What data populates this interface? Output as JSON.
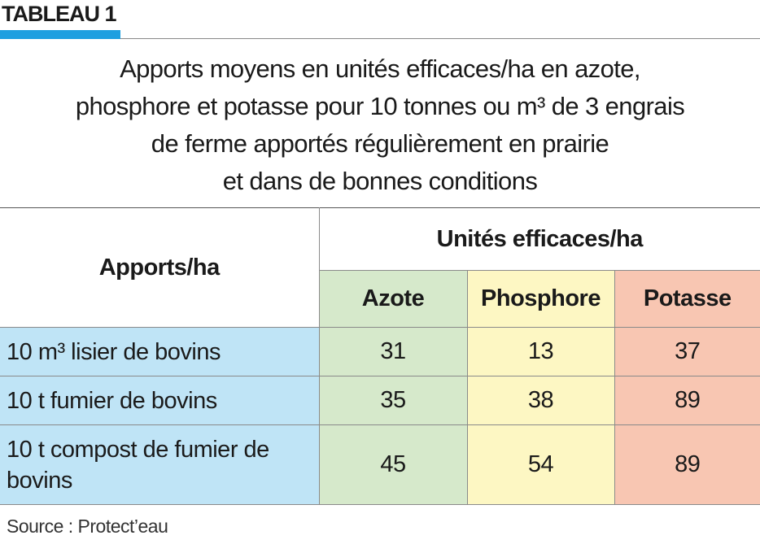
{
  "header": {
    "label": "TABLEAU 1"
  },
  "title": {
    "lines": [
      "Apports moyens en unités efficaces/ha en azote,",
      "phosphore et potasse pour 10 tonnes ou m³ de 3 engrais",
      "de ferme apportés régulièrement en prairie",
      "et dans de bonnes conditions"
    ]
  },
  "table": {
    "row_header": "Apports/ha",
    "group_header": "Unités efficaces/ha",
    "columns": [
      "Azote",
      "Phosphore",
      "Potasse"
    ],
    "rows": [
      [
        "10 m³ lisier de bovins",
        31,
        13,
        37
      ],
      [
        "10 t fumier de bovins",
        35,
        38,
        89
      ],
      [
        "10 t compost de fumier de bovins",
        45,
        54,
        89
      ]
    ]
  },
  "source": "Source : Protect’eau"
}
